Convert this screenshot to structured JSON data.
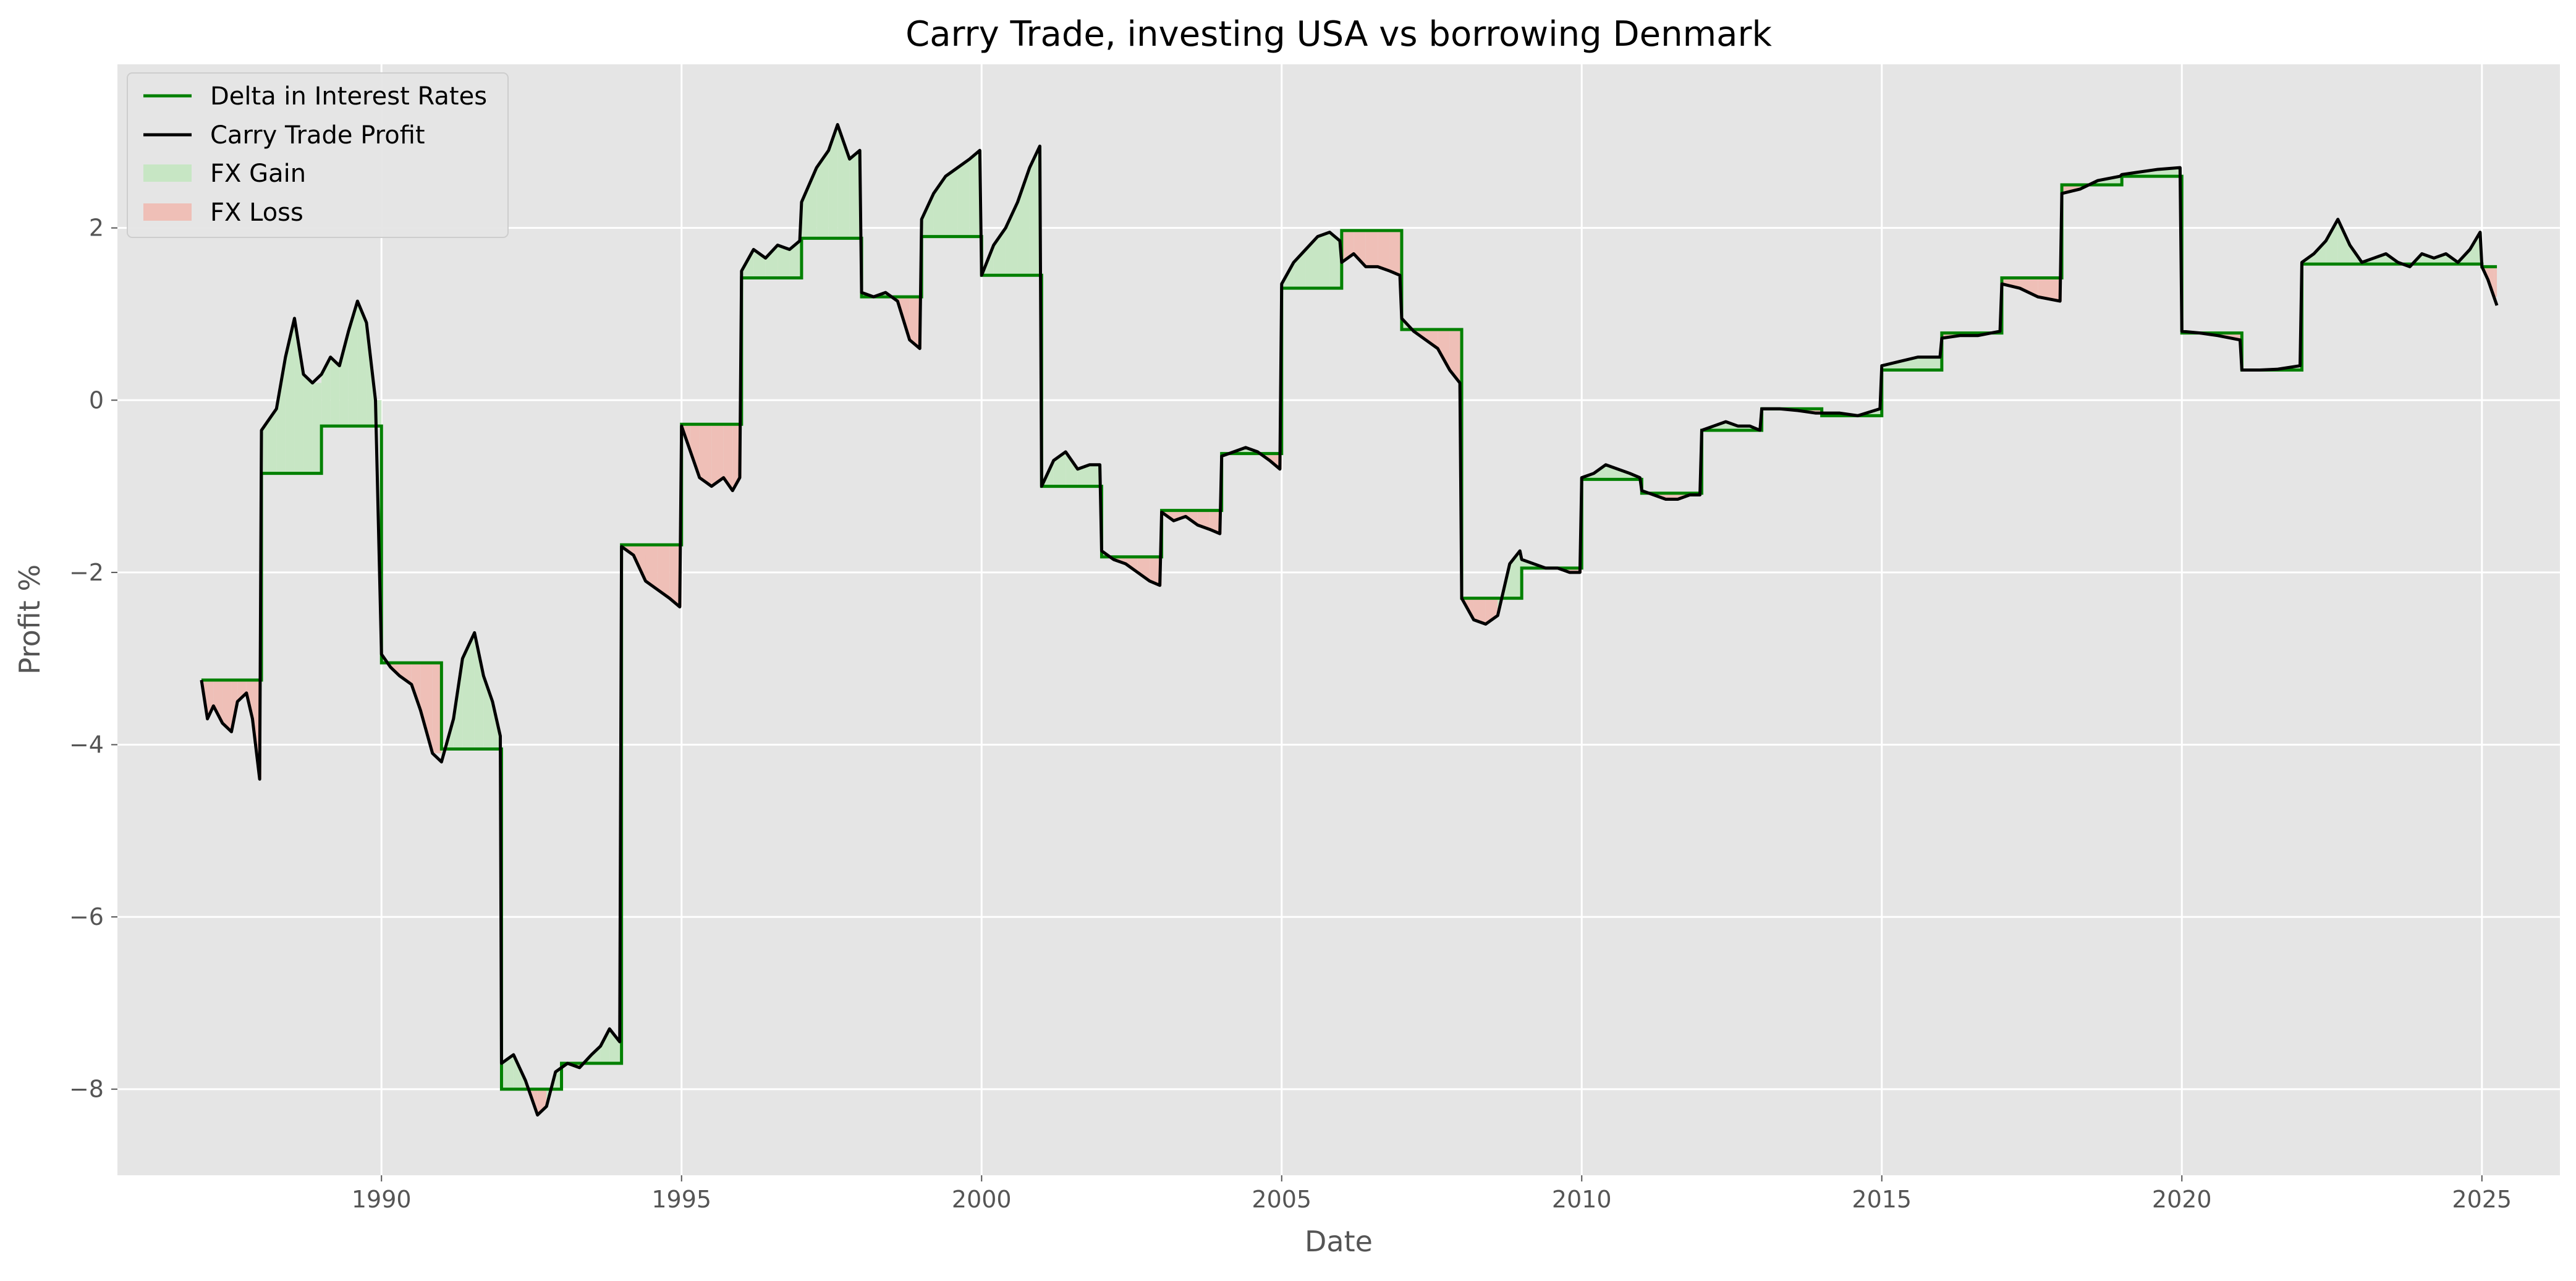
{
  "chart_data": {
    "type": "line",
    "title": "Carry Trade, investing USA vs borrowing Denmark",
    "xlabel": "Date",
    "ylabel": "Profit %",
    "xlim": [
      1985.6,
      2026.3
    ],
    "ylim": [
      -9.0,
      3.9
    ],
    "x_ticks": [
      1990,
      1995,
      2000,
      2005,
      2010,
      2015,
      2020,
      2025
    ],
    "x_tick_labels": [
      "1990",
      "1995",
      "2000",
      "2005",
      "2010",
      "2015",
      "2020",
      "2025"
    ],
    "y_ticks": [
      -8,
      -6,
      -4,
      -2,
      0,
      2
    ],
    "y_tick_labels": [
      "−8",
      "−6",
      "−4",
      "−2",
      "0",
      "2"
    ],
    "grid": true,
    "legend_position": "top-left",
    "legend": [
      {
        "label": "Delta in Interest Rates",
        "kind": "line",
        "color": "#008000"
      },
      {
        "label": "Carry Trade Profit",
        "kind": "line",
        "color": "#000000"
      },
      {
        "label": "FX Gain",
        "kind": "patch",
        "color": "#c7e6c4"
      },
      {
        "label": "FX Loss",
        "kind": "patch",
        "color": "#efbfb7"
      }
    ],
    "colors": {
      "background": "#e5e5e5",
      "grid": "#ffffff",
      "delta_line": "#008000",
      "profit_line": "#000000",
      "fx_gain": "#c7e6c4",
      "fx_loss": "#efbfb7"
    },
    "series": [
      {
        "name": "Delta in Interest Rates",
        "kind": "step",
        "segments": [
          {
            "start": 1987.0,
            "end": 1988.0,
            "value": -3.25
          },
          {
            "start": 1988.0,
            "end": 1989.0,
            "value": -0.85
          },
          {
            "start": 1989.0,
            "end": 1990.0,
            "value": -0.3
          },
          {
            "start": 1990.0,
            "end": 1991.0,
            "value": -3.05
          },
          {
            "start": 1991.0,
            "end": 1992.0,
            "value": -4.05
          },
          {
            "start": 1992.0,
            "end": 1993.0,
            "value": -8.0
          },
          {
            "start": 1993.0,
            "end": 1994.0,
            "value": -7.7
          },
          {
            "start": 1994.0,
            "end": 1995.0,
            "value": -1.68
          },
          {
            "start": 1995.0,
            "end": 1996.0,
            "value": -0.28
          },
          {
            "start": 1996.0,
            "end": 1997.0,
            "value": 1.42
          },
          {
            "start": 1997.0,
            "end": 1998.0,
            "value": 1.88
          },
          {
            "start": 1998.0,
            "end": 1999.0,
            "value": 1.2
          },
          {
            "start": 1999.0,
            "end": 2000.0,
            "value": 1.9
          },
          {
            "start": 2000.0,
            "end": 2001.0,
            "value": 1.45
          },
          {
            "start": 2001.0,
            "end": 2002.0,
            "value": -1.0
          },
          {
            "start": 2002.0,
            "end": 2003.0,
            "value": -1.82
          },
          {
            "start": 2003.0,
            "end": 2004.0,
            "value": -1.28
          },
          {
            "start": 2004.0,
            "end": 2005.0,
            "value": -0.62
          },
          {
            "start": 2005.0,
            "end": 2006.0,
            "value": 1.3
          },
          {
            "start": 2006.0,
            "end": 2007.0,
            "value": 1.97
          },
          {
            "start": 2007.0,
            "end": 2008.0,
            "value": 0.82
          },
          {
            "start": 2008.0,
            "end": 2009.0,
            "value": -2.3
          },
          {
            "start": 2009.0,
            "end": 2010.0,
            "value": -1.95
          },
          {
            "start": 2010.0,
            "end": 2011.0,
            "value": -0.92
          },
          {
            "start": 2011.0,
            "end": 2012.0,
            "value": -1.08
          },
          {
            "start": 2012.0,
            "end": 2013.0,
            "value": -0.35
          },
          {
            "start": 2013.0,
            "end": 2014.0,
            "value": -0.1
          },
          {
            "start": 2014.0,
            "end": 2015.0,
            "value": -0.18
          },
          {
            "start": 2015.0,
            "end": 2016.0,
            "value": 0.35
          },
          {
            "start": 2016.0,
            "end": 2017.0,
            "value": 0.78
          },
          {
            "start": 2017.0,
            "end": 2018.0,
            "value": 1.42
          },
          {
            "start": 2018.0,
            "end": 2019.0,
            "value": 2.5
          },
          {
            "start": 2019.0,
            "end": 2020.0,
            "value": 2.6
          },
          {
            "start": 2020.0,
            "end": 2021.0,
            "value": 0.78
          },
          {
            "start": 2021.0,
            "end": 2022.0,
            "value": 0.35
          },
          {
            "start": 2022.0,
            "end": 2025.0,
            "value": 1.58
          },
          {
            "start": 2025.0,
            "end": 2025.25,
            "value": 1.55
          }
        ]
      },
      {
        "name": "Carry Trade Profit",
        "kind": "line",
        "x": [
          1987.0,
          1987.1,
          1987.2,
          1987.35,
          1987.5,
          1987.6,
          1987.75,
          1987.85,
          1987.97,
          1988.0,
          1988.1,
          1988.25,
          1988.4,
          1988.55,
          1988.7,
          1988.85,
          1989.0,
          1989.15,
          1989.3,
          1989.45,
          1989.6,
          1989.75,
          1989.9,
          1990.0,
          1990.15,
          1990.3,
          1990.5,
          1990.65,
          1990.85,
          1991.0,
          1991.2,
          1991.35,
          1991.55,
          1991.7,
          1991.85,
          1991.98,
          1992.0,
          1992.2,
          1992.4,
          1992.6,
          1992.75,
          1992.9,
          1993.1,
          1993.3,
          1993.5,
          1993.65,
          1993.8,
          1993.97,
          1994.0,
          1994.2,
          1994.4,
          1994.6,
          1994.8,
          1994.97,
          1995.0,
          1995.15,
          1995.3,
          1995.5,
          1995.7,
          1995.85,
          1995.97,
          1996.0,
          1996.2,
          1996.4,
          1996.6,
          1996.8,
          1996.97,
          1997.0,
          1997.25,
          1997.45,
          1997.6,
          1997.8,
          1997.97,
          1998.0,
          1998.2,
          1998.4,
          1998.6,
          1998.8,
          1998.97,
          1999.0,
          1999.2,
          1999.4,
          1999.6,
          1999.8,
          1999.97,
          2000.0,
          2000.2,
          2000.4,
          2000.6,
          2000.8,
          2000.97,
          2001.0,
          2001.2,
          2001.4,
          2001.6,
          2001.8,
          2001.97,
          2002.0,
          2002.2,
          2002.4,
          2002.6,
          2002.8,
          2002.97,
          2003.0,
          2003.2,
          2003.4,
          2003.6,
          2003.8,
          2003.97,
          2004.0,
          2004.2,
          2004.4,
          2004.6,
          2004.8,
          2004.97,
          2005.0,
          2005.2,
          2005.4,
          2005.6,
          2005.8,
          2005.97,
          2006.0,
          2006.2,
          2006.4,
          2006.6,
          2006.8,
          2006.97,
          2007.0,
          2007.2,
          2007.4,
          2007.6,
          2007.8,
          2007.97,
          2008.0,
          2008.2,
          2008.4,
          2008.6,
          2008.8,
          2008.97,
          2009.0,
          2009.2,
          2009.4,
          2009.6,
          2009.8,
          2009.97,
          2010.0,
          2010.2,
          2010.4,
          2010.6,
          2010.8,
          2010.97,
          2011.0,
          2011.2,
          2011.4,
          2011.6,
          2011.8,
          2011.97,
          2012.0,
          2012.2,
          2012.4,
          2012.6,
          2012.8,
          2012.97,
          2013.0,
          2013.3,
          2013.6,
          2013.9,
          2014.0,
          2014.3,
          2014.6,
          2014.97,
          2015.0,
          2015.3,
          2015.6,
          2015.97,
          2016.0,
          2016.3,
          2016.6,
          2016.97,
          2017.0,
          2017.3,
          2017.6,
          2017.97,
          2018.0,
          2018.3,
          2018.6,
          2018.97,
          2019.0,
          2019.3,
          2019.6,
          2019.97,
          2020.0,
          2020.3,
          2020.6,
          2020.97,
          2021.0,
          2021.3,
          2021.6,
          2021.97,
          2022.0,
          2022.2,
          2022.4,
          2022.6,
          2022.8,
          2023.0,
          2023.2,
          2023.4,
          2023.6,
          2023.8,
          2024.0,
          2024.2,
          2024.4,
          2024.6,
          2024.8,
          2024.97,
          2025.0,
          2025.1,
          2025.2,
          2025.25
        ],
        "y": [
          -3.25,
          -3.7,
          -3.55,
          -3.75,
          -3.85,
          -3.5,
          -3.4,
          -3.7,
          -4.4,
          -0.35,
          -0.25,
          -0.1,
          0.5,
          0.95,
          0.3,
          0.2,
          0.3,
          0.5,
          0.4,
          0.8,
          1.15,
          0.9,
          0.0,
          -2.95,
          -3.1,
          -3.2,
          -3.3,
          -3.6,
          -4.1,
          -4.2,
          -3.7,
          -3.0,
          -2.7,
          -3.2,
          -3.5,
          -3.9,
          -7.7,
          -7.6,
          -7.9,
          -8.3,
          -8.2,
          -7.8,
          -7.7,
          -7.75,
          -7.6,
          -7.5,
          -7.3,
          -7.45,
          -1.7,
          -1.8,
          -2.1,
          -2.2,
          -2.3,
          -2.4,
          -0.3,
          -0.6,
          -0.9,
          -1.0,
          -0.9,
          -1.05,
          -0.9,
          1.5,
          1.75,
          1.65,
          1.8,
          1.75,
          1.85,
          2.3,
          2.7,
          2.9,
          3.2,
          2.8,
          2.9,
          1.25,
          1.2,
          1.25,
          1.15,
          0.7,
          0.6,
          2.1,
          2.4,
          2.6,
          2.7,
          2.8,
          2.9,
          1.45,
          1.8,
          2.0,
          2.3,
          2.7,
          2.95,
          -1.0,
          -0.7,
          -0.6,
          -0.8,
          -0.75,
          -0.75,
          -1.75,
          -1.85,
          -1.9,
          -2.0,
          -2.1,
          -2.15,
          -1.3,
          -1.4,
          -1.35,
          -1.45,
          -1.5,
          -1.55,
          -0.65,
          -0.6,
          -0.55,
          -0.6,
          -0.7,
          -0.8,
          1.35,
          1.6,
          1.75,
          1.9,
          1.95,
          1.85,
          1.6,
          1.7,
          1.55,
          1.55,
          1.5,
          1.45,
          0.95,
          0.8,
          0.7,
          0.6,
          0.35,
          0.2,
          -2.3,
          -2.55,
          -2.6,
          -2.5,
          -1.9,
          -1.75,
          -1.85,
          -1.9,
          -1.95,
          -1.95,
          -2.0,
          -2.0,
          -0.9,
          -0.85,
          -0.75,
          -0.8,
          -0.85,
          -0.9,
          -1.05,
          -1.1,
          -1.15,
          -1.15,
          -1.1,
          -1.1,
          -0.35,
          -0.3,
          -0.25,
          -0.3,
          -0.3,
          -0.35,
          -0.1,
          -0.1,
          -0.12,
          -0.15,
          -0.15,
          -0.15,
          -0.18,
          -0.1,
          0.4,
          0.45,
          0.5,
          0.5,
          0.72,
          0.75,
          0.75,
          0.8,
          1.35,
          1.3,
          1.2,
          1.15,
          2.4,
          2.45,
          2.55,
          2.6,
          2.62,
          2.65,
          2.68,
          2.7,
          0.8,
          0.78,
          0.75,
          0.7,
          0.35,
          0.35,
          0.36,
          0.4,
          1.6,
          1.7,
          1.85,
          2.1,
          1.8,
          1.6,
          1.65,
          1.7,
          1.6,
          1.55,
          1.7,
          1.65,
          1.7,
          1.6,
          1.75,
          1.95,
          1.55,
          1.4,
          1.2,
          1.1
        ]
      }
    ]
  }
}
